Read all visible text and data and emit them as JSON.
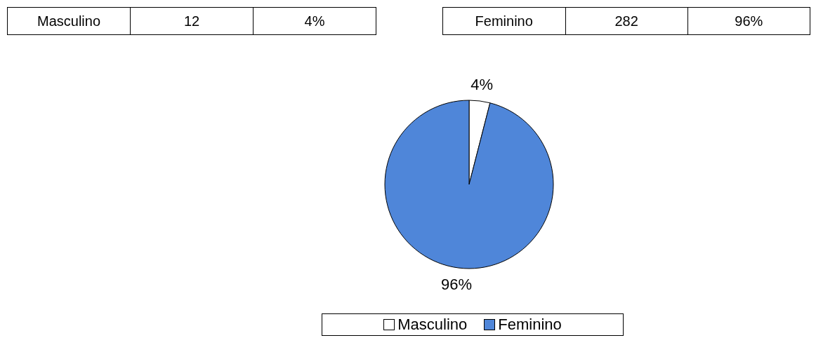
{
  "chart_data": {
    "type": "pie",
    "categories": [
      "Masculino",
      "Feminino"
    ],
    "values": [
      4,
      96
    ],
    "value_labels": [
      "4%",
      "96%"
    ],
    "annotations": [
      "12",
      "282"
    ],
    "colors": [
      "#ffffff",
      "#4f86d9"
    ],
    "legend": "bottom"
  }
}
